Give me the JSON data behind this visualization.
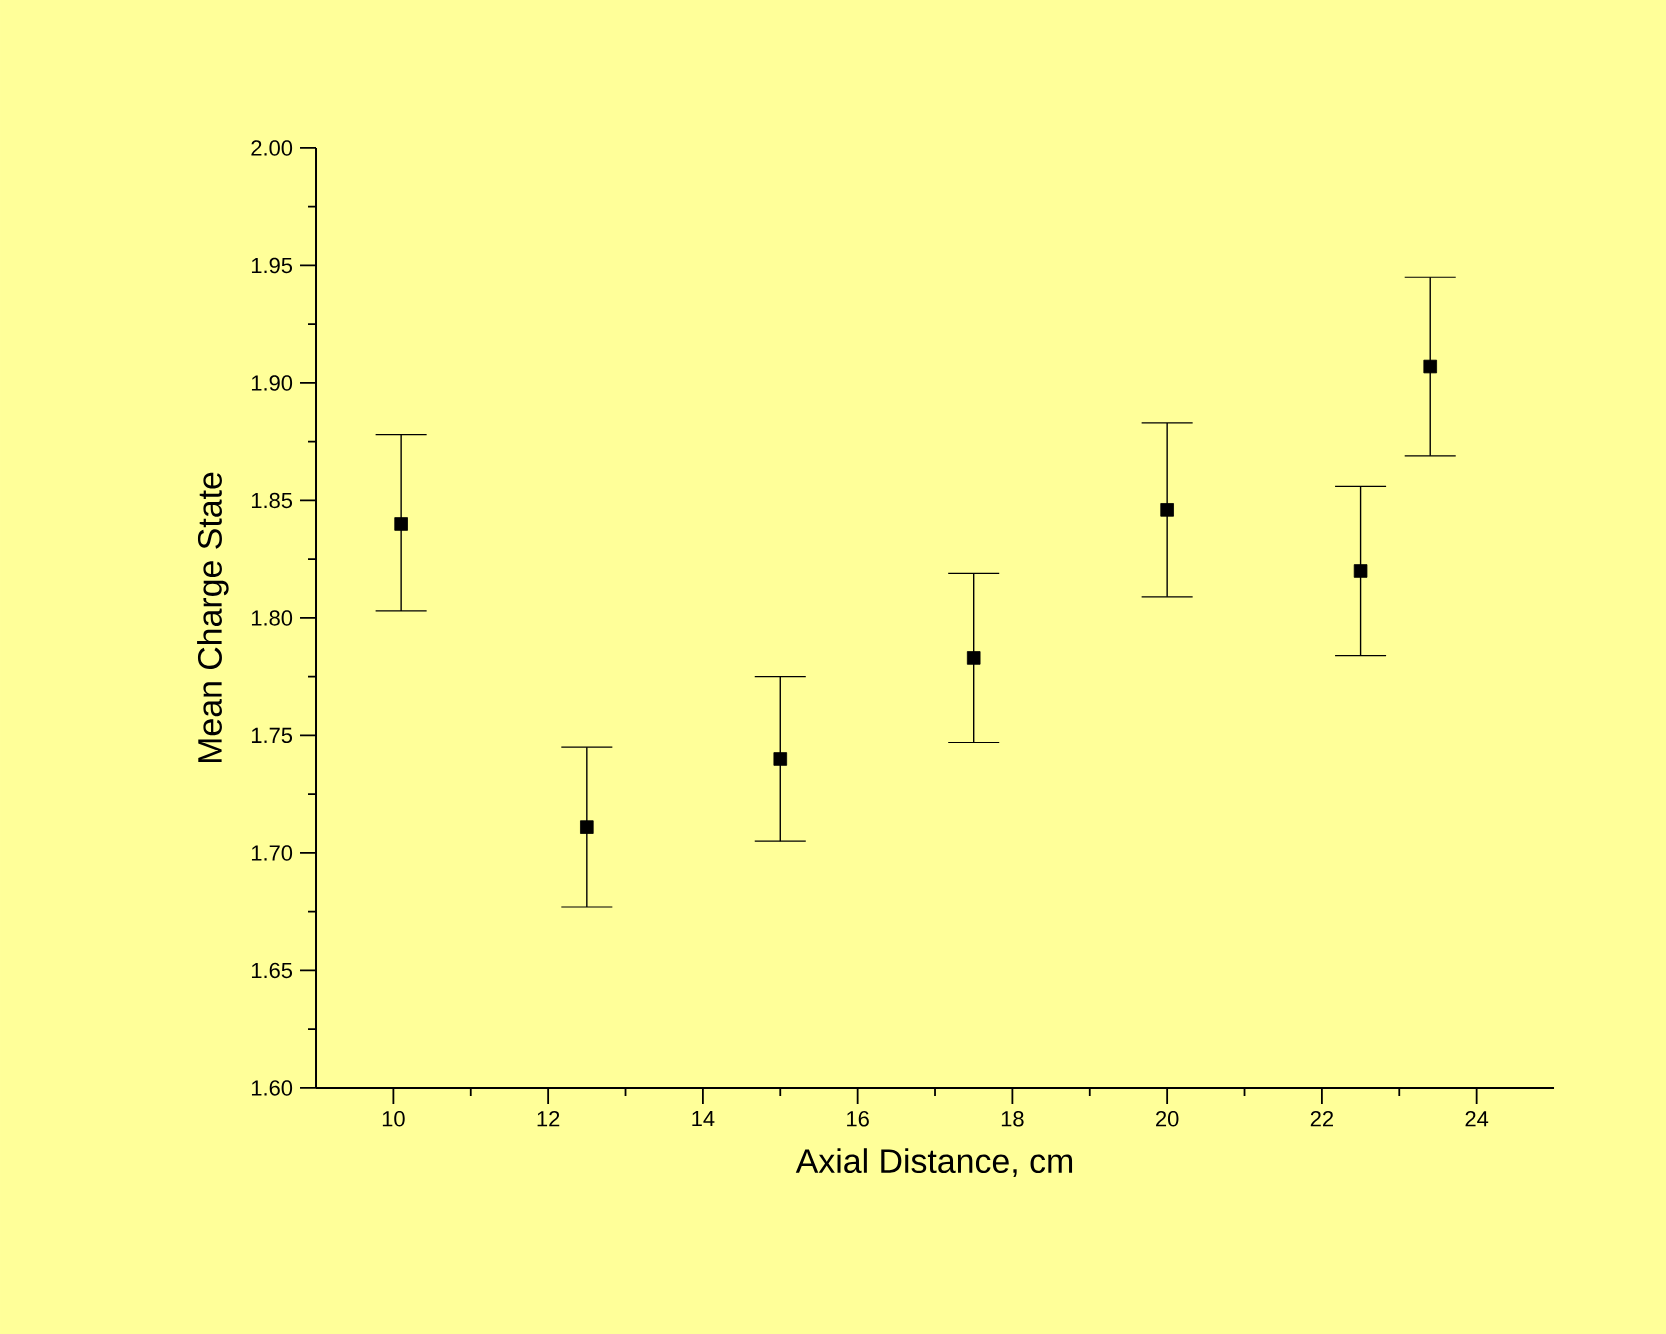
{
  "chart_data": {
    "type": "scatter",
    "xlabel": "Axial Distance, cm",
    "ylabel": "Mean Charge State",
    "x": [
      10.1,
      12.5,
      15.0,
      17.5,
      20.0,
      22.5,
      23.4
    ],
    "values": [
      1.84,
      1.711,
      1.74,
      1.783,
      1.846,
      1.82,
      1.907
    ],
    "errors": [
      [
        1.803,
        1.878
      ],
      [
        1.677,
        1.745
      ],
      [
        1.705,
        1.775
      ],
      [
        1.747,
        1.819
      ],
      [
        1.809,
        1.883
      ],
      [
        1.784,
        1.856
      ],
      [
        1.869,
        1.945
      ]
    ],
    "color": "#000000",
    "marker": "square",
    "grid": false,
    "xlim": [
      9,
      25
    ],
    "xticks": [
      10,
      12,
      14,
      16,
      18,
      20,
      22,
      24
    ],
    "ylim": [
      1.6,
      2.0
    ],
    "yticks": [
      {
        "value": 1.6,
        "label": "1.60"
      },
      {
        "value": 1.65,
        "label": "1.65"
      },
      {
        "value": 1.7,
        "label": "1.70"
      },
      {
        "value": 1.75,
        "label": "1.75"
      },
      {
        "value": 1.8,
        "label": "1.80"
      },
      {
        "value": 1.85,
        "label": "1.85"
      },
      {
        "value": 1.9,
        "label": "1.90"
      },
      {
        "value": 1.95,
        "label": "1.95"
      },
      {
        "value": 2.0,
        "label": "2.00"
      }
    ]
  }
}
